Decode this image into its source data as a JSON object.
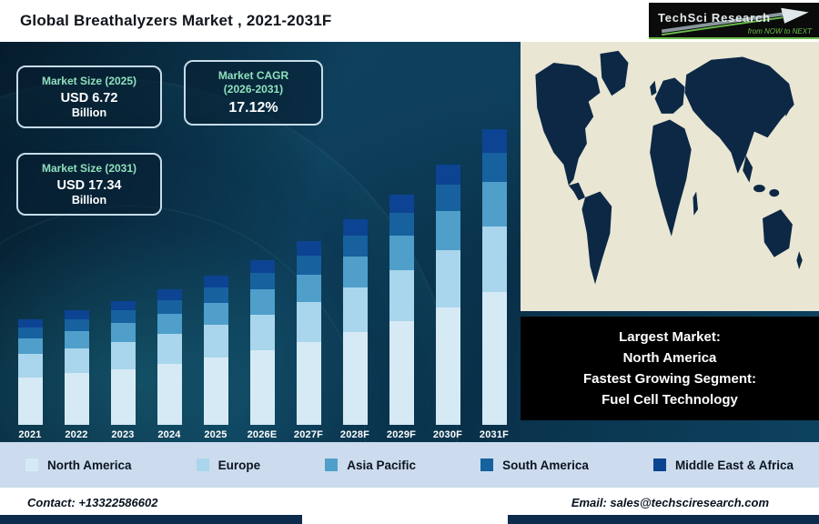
{
  "header": {
    "title": "Global Breathalyzers Market , 2021-2031F",
    "logo": {
      "name": "TechSci Research",
      "tagline": "from NOW to NEXT"
    }
  },
  "stats": {
    "market_size_2025": {
      "title": "Market Size (2025)",
      "value": "USD 6.72",
      "unit": "Billion"
    },
    "market_cagr": {
      "title_line1": "Market CAGR",
      "title_line2": "(2026-2031)",
      "value": "17.12%"
    },
    "market_size_2031": {
      "title": "Market Size (2031)",
      "value": "USD 17.34",
      "unit": "Billion"
    }
  },
  "chart_data": {
    "type": "bar",
    "stacked": true,
    "title": "Global Breathalyzers Market, 2021-2031F",
    "unit": "USD Billion",
    "categories": [
      "2021",
      "2022",
      "2023",
      "2024",
      "2025",
      "2026E",
      "2027F",
      "2028F",
      "2029F",
      "2030F",
      "2031F"
    ],
    "series": [
      {
        "name": "North America",
        "color": "#d6eaf5",
        "values": [
          1.61,
          1.89,
          2.21,
          2.58,
          3.02,
          3.54,
          4.14,
          4.86,
          5.68,
          6.66,
          7.8
        ]
      },
      {
        "name": "Europe",
        "color": "#a9d6ec",
        "values": [
          0.79,
          0.92,
          1.08,
          1.26,
          1.48,
          1.73,
          2.03,
          2.37,
          2.78,
          3.25,
          3.81
        ]
      },
      {
        "name": "Asia Pacific",
        "color": "#4f9fca",
        "values": [
          0.54,
          0.63,
          0.74,
          0.86,
          1.01,
          1.18,
          1.38,
          1.62,
          1.89,
          2.22,
          2.6
        ]
      },
      {
        "name": "South America",
        "color": "#17619f",
        "values": [
          0.36,
          0.42,
          0.49,
          0.57,
          0.67,
          0.79,
          0.92,
          1.08,
          1.26,
          1.48,
          1.73
        ]
      },
      {
        "name": "Middle East & Africa",
        "color": "#0c4392",
        "values": [
          0.29,
          0.34,
          0.39,
          0.46,
          0.54,
          0.63,
          0.74,
          0.86,
          1.01,
          1.18,
          1.39
        ]
      }
    ],
    "totals_usd_billion": [
      3.58,
      4.19,
      4.9,
      5.74,
      6.72,
      7.87,
      9.21,
      10.79,
      12.63,
      14.79,
      17.34
    ],
    "ylim": [
      0,
      18
    ],
    "y_axis_visible": false,
    "legend_position": "bottom"
  },
  "map_panel": {
    "info_lines": [
      "Largest Market:",
      "North America",
      "Fastest Growing Segment:",
      "Fuel Cell Technology"
    ]
  },
  "footer": {
    "contact": "Contact: +13322586602",
    "email": "Email: sales@techsciresearch.com"
  },
  "colors": {
    "background_navy": "#0a3049",
    "accent_teal_text": "#8fe0bd",
    "legend_background": "#ccdcee",
    "map_ocean": "#e9e6d4",
    "map_land": "#0d2845",
    "info_box_background": "#000000",
    "footer_bar_navy": "#0d2b4d",
    "logo_green": "#6abf4b"
  }
}
